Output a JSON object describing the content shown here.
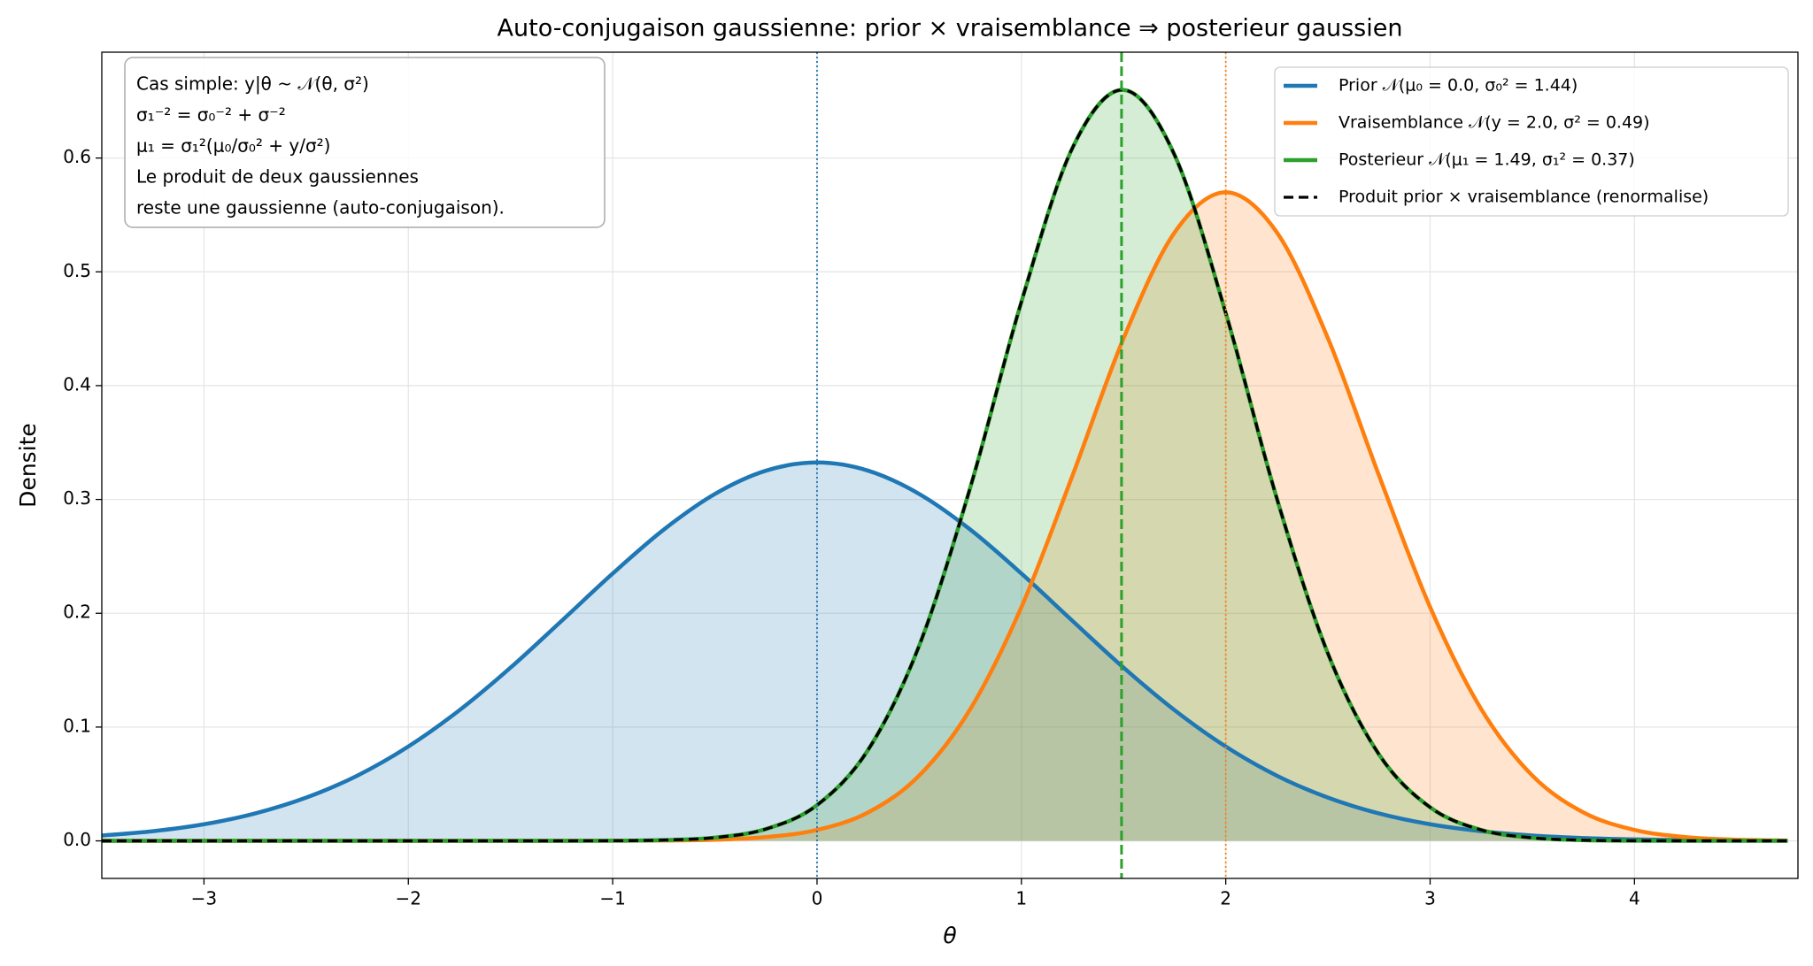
{
  "chart_data": {
    "type": "line",
    "title": "Auto-conjugaison gaussienne: prior × vraisemblance ⇒ posterieur gaussien",
    "xlabel": "θ",
    "ylabel": "Densite",
    "x": [
      -3.5,
      -3.25,
      -3,
      -2.75,
      -2.5,
      -2.25,
      -2,
      -1.75,
      -1.5,
      -1.25,
      -1,
      -0.75,
      -0.5,
      -0.25,
      0,
      0.25,
      0.5,
      0.75,
      1,
      1.25,
      1.5,
      1.75,
      2,
      2.25,
      2.5,
      2.75,
      3,
      3.25,
      3.5,
      3.75,
      4,
      4.25,
      4.5,
      4.75
    ],
    "series": [
      {
        "name": "Prior  𝒩(μ₀ = 0.0,  σ₀² = 1.44)",
        "color": "#1f77b4",
        "fill": true,
        "dash": false,
        "values": [
          0.0047,
          0.0085,
          0.0146,
          0.0241,
          0.038,
          0.0573,
          0.0829,
          0.1148,
          0.1522,
          0.1933,
          0.2349,
          0.2735,
          0.3048,
          0.3253,
          0.3325,
          0.3253,
          0.3048,
          0.2735,
          0.2349,
          0.1933,
          0.1522,
          0.1148,
          0.0829,
          0.0573,
          0.038,
          0.0241,
          0.0146,
          0.0085,
          0.0047,
          0.0025,
          0.0013,
          0.0006,
          0.0003,
          0.0001
        ]
      },
      {
        "name": "Vraisemblance  𝒩(y = 2.0,  σ² = 0.49)",
        "color": "#ff7f0e",
        "fill": true,
        "dash": false,
        "values": [
          0,
          0,
          0,
          0,
          0,
          0,
          0,
          0,
          0,
          0,
          0.0001,
          0.0003,
          0.001,
          0.0033,
          0.0096,
          0.025,
          0.0574,
          0.1158,
          0.2054,
          0.321,
          0.4416,
          0.5347,
          0.5699,
          0.5347,
          0.4416,
          0.321,
          0.2054,
          0.1158,
          0.0574,
          0.025,
          0.0096,
          0.0033,
          0.001,
          0.0003
        ]
      },
      {
        "name": "Posterieur  𝒩(μ₁ = 1.49,  σ₁² = 0.37)",
        "color": "#2ca02c",
        "fill": true,
        "dash": false,
        "values": [
          0,
          0,
          0,
          0,
          0,
          0,
          0,
          0,
          0,
          0,
          0.0001,
          0.0007,
          0.0029,
          0.0104,
          0.0314,
          0.08,
          0.1716,
          0.3106,
          0.4736,
          0.6089,
          0.6598,
          0.6025,
          0.4638,
          0.3009,
          0.1646,
          0.0759,
          0.0295,
          0.0096,
          0.0027,
          0.0006,
          0.0001,
          0,
          0,
          0
        ]
      },
      {
        "name": "Produit prior × vraisemblance (renormalise)",
        "color": "#000000",
        "fill": false,
        "dash": true,
        "values": [
          0,
          0,
          0,
          0,
          0,
          0,
          0,
          0,
          0,
          0,
          0.0001,
          0.0007,
          0.0029,
          0.0104,
          0.0314,
          0.08,
          0.1716,
          0.3106,
          0.4736,
          0.6089,
          0.6598,
          0.6025,
          0.4638,
          0.3009,
          0.1646,
          0.0759,
          0.0295,
          0.0096,
          0.0027,
          0.0006,
          0.0001,
          0,
          0,
          0
        ]
      }
    ],
    "reference_lines": [
      {
        "x": 0,
        "color": "#1f77b4",
        "style": "dotted"
      },
      {
        "x": 2,
        "color": "#ff7f0e",
        "style": "dotted"
      },
      {
        "x": 1.49,
        "color": "#2ca02c",
        "style": "dashed"
      }
    ],
    "annotation": [
      "Cas simple:  y|θ ~ 𝒩(θ, σ²)",
      "σ₁⁻² = σ₀⁻² + σ⁻²",
      "μ₁ = σ₁²(μ₀/σ₀² + y/σ²)",
      "Le produit de deux gaussiennes",
      "reste une gaussienne (auto-conjugaison)."
    ],
    "xlim": [
      -3.5,
      4.8
    ],
    "ylim": [
      -0.033,
      0.693
    ],
    "xticks": [
      {
        "value": -3,
        "label": "−3"
      },
      {
        "value": -2,
        "label": "−2"
      },
      {
        "value": -1,
        "label": "−1"
      },
      0,
      1,
      2,
      3,
      4
    ],
    "yticks": [
      {
        "value": 0,
        "label": "0.0"
      },
      0.1,
      0.2,
      0.3,
      0.4,
      0.5,
      0.6
    ],
    "grid": true,
    "legend": "upper right"
  }
}
